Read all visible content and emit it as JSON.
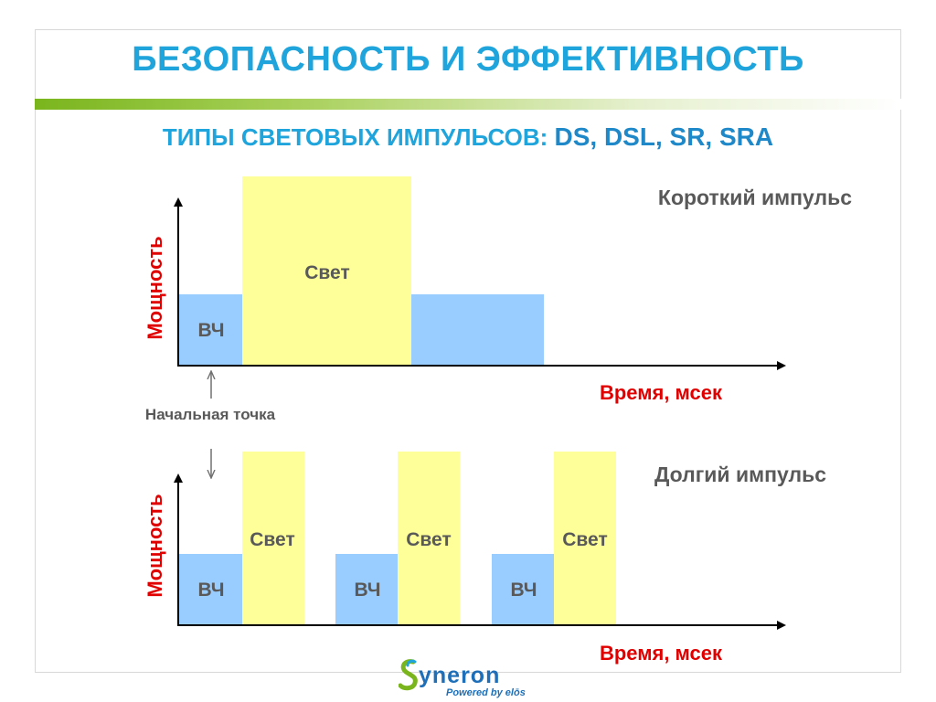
{
  "slide": {
    "title": "БЕЗОПАСНОСТЬ И ЭФФЕКТИВНОСТЬ",
    "subtitle_prefix": "ТИПЫ СВЕТОВЫХ ИМПУЛЬСОВ: ",
    "subtitle_codes": "DS,  DSL, SR, SRA"
  },
  "colors": {
    "title": "#1fa5dc",
    "axis_label": "#e00000",
    "rf_block": "#99ccff",
    "light_block": "#ffff99",
    "text_gray": "#595959"
  },
  "short_pulse": {
    "label": "Короткий импульс",
    "y_axis_label": "Мощность",
    "x_axis_label": "Время, мсек",
    "rf_label": "ВЧ",
    "light_label": "Свет"
  },
  "start_point": {
    "label": "Начальная точка"
  },
  "long_pulse": {
    "label": "Долгий импульс",
    "y_axis_label": "Мощность",
    "x_axis_label": "Время, мсек",
    "pulses": [
      {
        "rf_label": "ВЧ",
        "light_label": "Свет"
      },
      {
        "rf_label": "ВЧ",
        "light_label": "Свет"
      },
      {
        "rf_label": "ВЧ",
        "light_label": "Свет"
      }
    ]
  },
  "logo": {
    "brand": "yneron",
    "tagline": "Powered by elōs"
  }
}
